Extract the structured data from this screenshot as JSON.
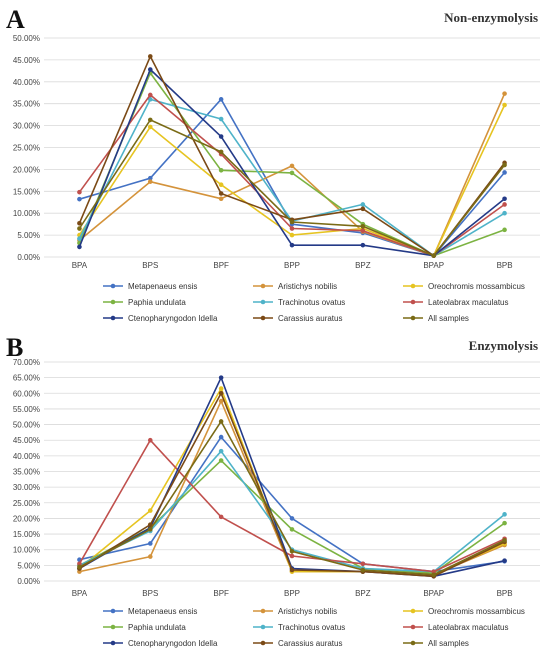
{
  "chart_data": [
    {
      "panel": "A",
      "type": "line",
      "title": "Non-enzymolysis",
      "categories": [
        "BPA",
        "BPS",
        "BPF",
        "BPP",
        "BPZ",
        "BPAP",
        "BPB"
      ],
      "ylim": [
        0,
        50
      ],
      "yticks": [
        "0.00%",
        "5.00%",
        "10.00%",
        "15.00%",
        "20.00%",
        "25.00%",
        "30.00%",
        "35.00%",
        "40.00%",
        "45.00%",
        "50.00%"
      ],
      "grid": true,
      "legend_position": "bottom",
      "series": [
        {
          "name": "Metapenaeus ensis",
          "color": "#4472c4",
          "values": [
            13.2,
            18.0,
            36.0,
            7.5,
            5.5,
            0.3,
            19.3
          ]
        },
        {
          "name": "Aristichys nobilis",
          "color": "#d4933b",
          "values": [
            3.8,
            17.2,
            13.3,
            20.8,
            5.8,
            0.3,
            37.3
          ]
        },
        {
          "name": "Oreochromis mossambicus",
          "color": "#e6c421",
          "values": [
            5.0,
            29.7,
            16.5,
            5.0,
            6.5,
            0.3,
            34.7
          ]
        },
        {
          "name": "Paphia undulata",
          "color": "#7cb342",
          "values": [
            3.2,
            42.0,
            19.8,
            19.2,
            7.5,
            0.3,
            6.2
          ]
        },
        {
          "name": "Trachinotus ovatus",
          "color": "#4fb3c9",
          "values": [
            4.2,
            36.0,
            31.5,
            8.2,
            12.0,
            0.3,
            10.0
          ]
        },
        {
          "name": "Lateolabrax maculatus",
          "color": "#c0504d",
          "values": [
            14.8,
            37.0,
            23.5,
            6.5,
            6.0,
            0.3,
            12.0
          ]
        },
        {
          "name": "Ctenopharyngodon Idella",
          "color": "#243a87",
          "values": [
            2.3,
            42.8,
            27.5,
            2.7,
            2.7,
            0.3,
            13.3
          ]
        },
        {
          "name": "Carassius auratus",
          "color": "#7b4a16",
          "values": [
            7.7,
            45.8,
            14.5,
            8.5,
            11.0,
            0.3,
            21.5
          ]
        },
        {
          "name": "All samples",
          "color": "#7a6b16",
          "values": [
            6.5,
            31.3,
            24.0,
            8.0,
            7.0,
            0.3,
            21.0
          ]
        }
      ]
    },
    {
      "panel": "B",
      "type": "line",
      "title": "Enzymolysis",
      "categories": [
        "BPA",
        "BPS",
        "BPF",
        "BPP",
        "BPZ",
        "BPAP",
        "BPB"
      ],
      "ylim": [
        0,
        70
      ],
      "yticks": [
        "0.00%",
        "5.00%",
        "10.00%",
        "15.00%",
        "20.00%",
        "25.00%",
        "30.00%",
        "35.00%",
        "40.00%",
        "45.00%",
        "50.00%",
        "55.00%",
        "60.00%",
        "65.00%",
        "70.00%"
      ],
      "grid": true,
      "legend_position": "bottom",
      "series": [
        {
          "name": "Metapenaeus ensis",
          "color": "#4472c4",
          "values": [
            6.8,
            12.0,
            46.0,
            20.0,
            5.5,
            3.0,
            6.3
          ]
        },
        {
          "name": "Aristichys nobilis",
          "color": "#d4933b",
          "values": [
            3.0,
            7.8,
            57.5,
            3.0,
            3.0,
            2.0,
            11.5
          ]
        },
        {
          "name": "Oreochromis mossambicus",
          "color": "#e6c421",
          "values": [
            4.0,
            22.5,
            61.5,
            3.0,
            3.0,
            2.0,
            12.0
          ]
        },
        {
          "name": "Paphia undulata",
          "color": "#7cb342",
          "values": [
            5.0,
            17.0,
            38.5,
            16.5,
            4.0,
            2.5,
            18.5
          ]
        },
        {
          "name": "Trachinotus ovatus",
          "color": "#4fb3c9",
          "values": [
            5.0,
            16.0,
            41.5,
            10.0,
            4.0,
            3.0,
            21.3
          ]
        },
        {
          "name": "Lateolabrax maculatus",
          "color": "#c0504d",
          "values": [
            5.5,
            45.0,
            20.5,
            8.0,
            5.5,
            3.0,
            13.5
          ]
        },
        {
          "name": "Ctenopharyngodon Idella",
          "color": "#243a87",
          "values": [
            4.0,
            17.0,
            65.0,
            4.0,
            3.0,
            1.5,
            6.5
          ]
        },
        {
          "name": "Carassius auratus",
          "color": "#7b4a16",
          "values": [
            4.0,
            18.0,
            60.0,
            3.5,
            3.0,
            1.5,
            12.5
          ]
        },
        {
          "name": "All samples",
          "color": "#7a6b16",
          "values": [
            4.5,
            16.5,
            51.0,
            9.5,
            3.5,
            2.0,
            13.0
          ]
        }
      ]
    }
  ]
}
